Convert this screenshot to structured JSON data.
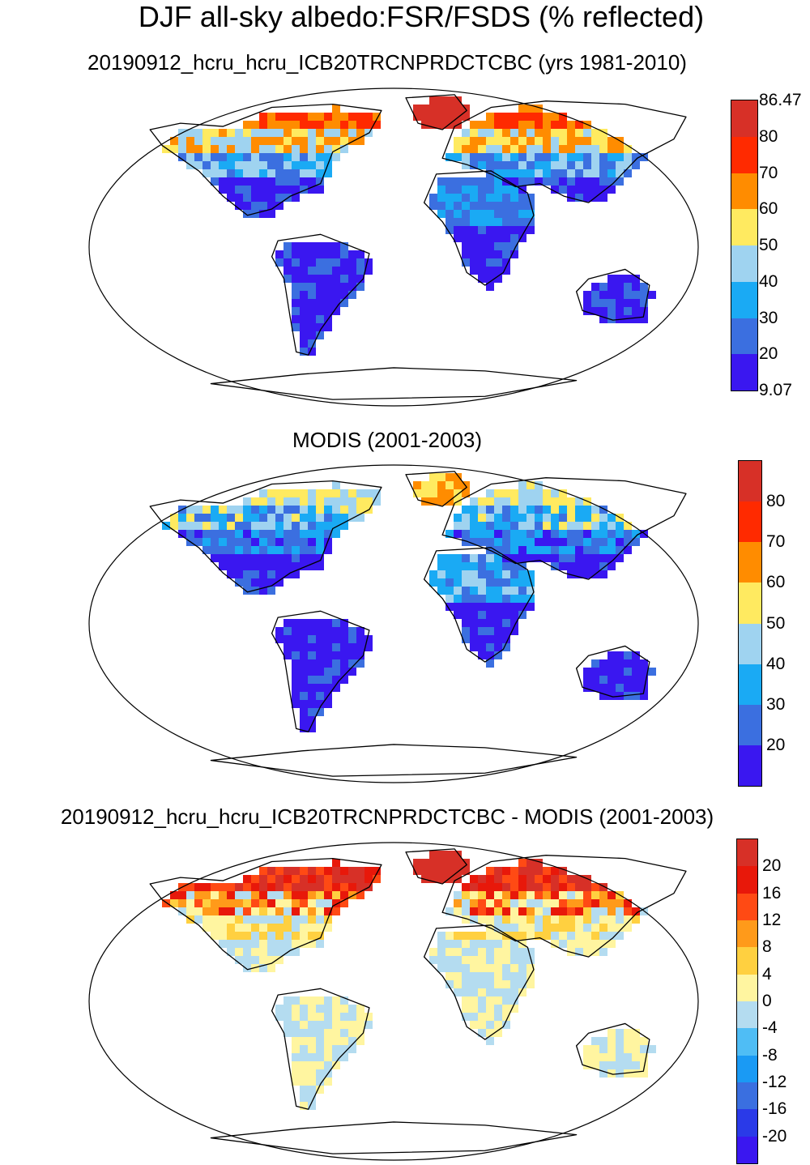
{
  "main_title": "DJF all-sky albedo:FSR/FSDS (% reflected)",
  "panels": [
    {
      "id": "model",
      "subtitle": "20190912_hcru_hcru_ICB20TRCNPRDCTCBC (yrs 1981-2010)",
      "colorbar": {
        "labels": [
          "86.47",
          "80",
          "70",
          "60",
          "50",
          "40",
          "30",
          "20",
          "9.07"
        ],
        "colors": [
          "#d73027",
          "#ff2a00",
          "#ff8c00",
          "#ffea60",
          "#9fd3f0",
          "#1aaaf4",
          "#3b6fe0",
          "#3a17f0"
        ]
      }
    },
    {
      "id": "obs",
      "subtitle": "MODIS (2001-2003)",
      "colorbar": {
        "labels": [
          "80",
          "70",
          "60",
          "50",
          "40",
          "30",
          "20"
        ],
        "colors": [
          "#d73027",
          "#ff2a00",
          "#ff8c00",
          "#ffea60",
          "#9fd3f0",
          "#1aaaf4",
          "#3b6fe0",
          "#3a17f0"
        ]
      }
    },
    {
      "id": "diff",
      "subtitle": "20190912_hcru_hcru_ICB20TRCNPRDCTCBC - MODIS (2001-2003)",
      "colorbar": {
        "labels": [
          "20",
          "16",
          "12",
          "8",
          "4",
          "0",
          "-4",
          "-8",
          "-12",
          "-16",
          "-20"
        ],
        "colors": [
          "#d73027",
          "#e8180a",
          "#ff4a14",
          "#ff9a1a",
          "#ffd040",
          "#fff5a0",
          "#b4dcf0",
          "#4fbdf5",
          "#1a9af4",
          "#3a6fe0",
          "#2a3ae8",
          "#3a17f0"
        ]
      }
    }
  ]
}
